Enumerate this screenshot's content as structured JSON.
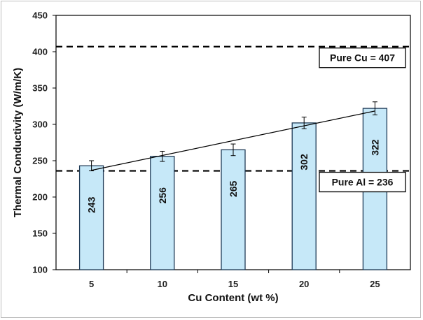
{
  "chart_data": {
    "type": "bar",
    "title": "",
    "xlabel": "Cu Content (wt %)",
    "ylabel": "Thermal Conductivity (W/m/K)",
    "categories": [
      "5",
      "10",
      "15",
      "20",
      "25"
    ],
    "values": [
      243,
      256,
      265,
      302,
      322
    ],
    "error": [
      7,
      7,
      8,
      8,
      9
    ],
    "ylim": [
      100,
      450
    ],
    "yticks": [
      100,
      150,
      200,
      250,
      300,
      350,
      400,
      450
    ],
    "trendline": {
      "type": "linear",
      "color": "#000000"
    },
    "reference_lines": [
      {
        "value": 407,
        "label": "Pure Cu = 407"
      },
      {
        "value": 236,
        "label": "Pure Al = 236"
      }
    ],
    "colors": {
      "bar_fill": "#c6e8f8",
      "bar_stroke": "#1f3b57"
    },
    "grid": false,
    "legend": "none"
  }
}
